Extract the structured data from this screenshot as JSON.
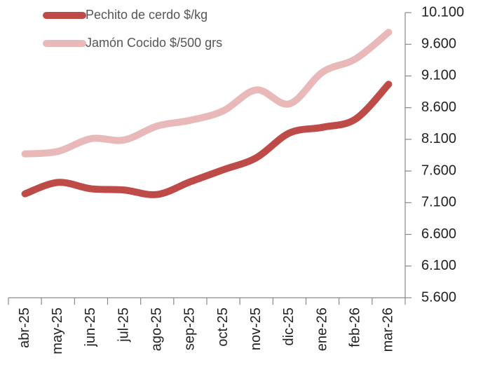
{
  "chart_data": {
    "type": "line",
    "categories": [
      "abr-25",
      "may-25",
      "jun-25",
      "jul-25",
      "ago-25",
      "sep-25",
      "oct-25",
      "nov-25",
      "dic-25",
      "ene-26",
      "feb-26",
      "mar-26"
    ],
    "series": [
      {
        "name": "Pechito de cerdo $/kg",
        "color": "#be4b48",
        "values": [
          7240,
          7420,
          7320,
          7300,
          7230,
          7430,
          7620,
          7810,
          8200,
          8290,
          8420,
          8970
        ]
      },
      {
        "name": "Jamón Cocido $/500 grs",
        "color": "#e8b9b8",
        "values": [
          7870,
          7910,
          8110,
          8090,
          8310,
          8400,
          8550,
          8880,
          8660,
          9160,
          9370,
          9790
        ]
      }
    ],
    "ylim": [
      5600,
      10100
    ],
    "yticks": [
      {
        "value": 5600,
        "label": "5.600"
      },
      {
        "value": 6100,
        "label": "6.100"
      },
      {
        "value": 6600,
        "label": "6.600"
      },
      {
        "value": 7100,
        "label": "7.100"
      },
      {
        "value": 7600,
        "label": "7.600"
      },
      {
        "value": 8100,
        "label": "8.100"
      },
      {
        "value": 8600,
        "label": "8.600"
      },
      {
        "value": 9100,
        "label": "9.100"
      },
      {
        "value": 9600,
        "label": "9.600"
      },
      {
        "value": 10100,
        "label": "10.100"
      }
    ],
    "legend": "top-left",
    "grid": false
  }
}
